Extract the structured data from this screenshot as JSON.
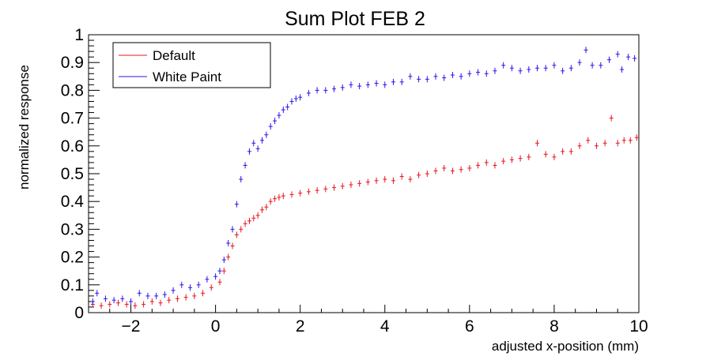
{
  "chart_data": {
    "type": "scatter",
    "title": "Sum Plot FEB 2",
    "xlabel": "adjusted x-position (mm)",
    "ylabel": "normalized response",
    "xlim": [
      -3,
      10
    ],
    "ylim": [
      0,
      1
    ],
    "x_ticks": [
      -2,
      0,
      2,
      4,
      6,
      8,
      10
    ],
    "x_tick_labels": [
      "−2",
      "0",
      "2",
      "4",
      "6",
      "8",
      "10"
    ],
    "y_ticks": [
      0,
      0.1,
      0.2,
      0.3,
      0.4,
      0.5,
      0.6,
      0.7,
      0.8,
      0.9,
      1
    ],
    "y_tick_labels": [
      "0",
      "0.1",
      "0.2",
      "0.3",
      "0.4",
      "0.5",
      "0.6",
      "0.7",
      "0.8",
      "0.9",
      "1"
    ],
    "grid": false,
    "legend_position": "top-left",
    "series": [
      {
        "name": "Default",
        "color": "#e8141c",
        "points": [
          [
            -2.9,
            0.03
          ],
          [
            -2.7,
            0.025
          ],
          [
            -2.5,
            0.03
          ],
          [
            -2.3,
            0.035
          ],
          [
            -2.1,
            0.03
          ],
          [
            -1.9,
            0.025
          ],
          [
            -1.7,
            0.03
          ],
          [
            -1.5,
            0.04
          ],
          [
            -1.3,
            0.035
          ],
          [
            -1.1,
            0.045
          ],
          [
            -0.9,
            0.05
          ],
          [
            -0.7,
            0.055
          ],
          [
            -0.5,
            0.06
          ],
          [
            -0.3,
            0.07
          ],
          [
            -0.1,
            0.09
          ],
          [
            0.1,
            0.11
          ],
          [
            0.2,
            0.15
          ],
          [
            0.3,
            0.2
          ],
          [
            0.4,
            0.24
          ],
          [
            0.5,
            0.28
          ],
          [
            0.6,
            0.3
          ],
          [
            0.7,
            0.32
          ],
          [
            0.8,
            0.33
          ],
          [
            0.9,
            0.34
          ],
          [
            1.0,
            0.35
          ],
          [
            1.1,
            0.37
          ],
          [
            1.2,
            0.38
          ],
          [
            1.3,
            0.4
          ],
          [
            1.4,
            0.41
          ],
          [
            1.5,
            0.415
          ],
          [
            1.6,
            0.42
          ],
          [
            1.8,
            0.425
          ],
          [
            2.0,
            0.43
          ],
          [
            2.2,
            0.435
          ],
          [
            2.4,
            0.44
          ],
          [
            2.6,
            0.445
          ],
          [
            2.8,
            0.45
          ],
          [
            3.0,
            0.455
          ],
          [
            3.2,
            0.46
          ],
          [
            3.4,
            0.465
          ],
          [
            3.6,
            0.47
          ],
          [
            3.8,
            0.475
          ],
          [
            4.0,
            0.48
          ],
          [
            4.2,
            0.475
          ],
          [
            4.4,
            0.49
          ],
          [
            4.6,
            0.48
          ],
          [
            4.8,
            0.495
          ],
          [
            5.0,
            0.5
          ],
          [
            5.2,
            0.51
          ],
          [
            5.4,
            0.52
          ],
          [
            5.6,
            0.51
          ],
          [
            5.8,
            0.515
          ],
          [
            6.0,
            0.52
          ],
          [
            6.2,
            0.53
          ],
          [
            6.4,
            0.54
          ],
          [
            6.6,
            0.53
          ],
          [
            6.8,
            0.545
          ],
          [
            7.0,
            0.55
          ],
          [
            7.2,
            0.555
          ],
          [
            7.4,
            0.56
          ],
          [
            7.6,
            0.61
          ],
          [
            7.8,
            0.57
          ],
          [
            8.0,
            0.56
          ],
          [
            8.2,
            0.58
          ],
          [
            8.4,
            0.58
          ],
          [
            8.6,
            0.6
          ],
          [
            8.8,
            0.62
          ],
          [
            9.0,
            0.6
          ],
          [
            9.2,
            0.61
          ],
          [
            9.35,
            0.7
          ],
          [
            9.5,
            0.61
          ],
          [
            9.65,
            0.62
          ],
          [
            9.8,
            0.62
          ],
          [
            9.95,
            0.63
          ]
        ]
      },
      {
        "name": "White Paint",
        "color": "#2a14e8",
        "points": [
          [
            -2.9,
            0.04
          ],
          [
            -2.8,
            0.07
          ],
          [
            -2.6,
            0.05
          ],
          [
            -2.4,
            0.045
          ],
          [
            -2.2,
            0.05
          ],
          [
            -2.0,
            0.04
          ],
          [
            -1.8,
            0.07
          ],
          [
            -1.6,
            0.06
          ],
          [
            -1.4,
            0.06
          ],
          [
            -1.2,
            0.065
          ],
          [
            -1.0,
            0.08
          ],
          [
            -0.8,
            0.1
          ],
          [
            -0.6,
            0.09
          ],
          [
            -0.4,
            0.1
          ],
          [
            -0.2,
            0.12
          ],
          [
            0.0,
            0.13
          ],
          [
            0.1,
            0.15
          ],
          [
            0.2,
            0.19
          ],
          [
            0.3,
            0.25
          ],
          [
            0.4,
            0.3
          ],
          [
            0.5,
            0.39
          ],
          [
            0.6,
            0.48
          ],
          [
            0.7,
            0.53
          ],
          [
            0.8,
            0.58
          ],
          [
            0.9,
            0.61
          ],
          [
            1.0,
            0.59
          ],
          [
            1.1,
            0.62
          ],
          [
            1.2,
            0.64
          ],
          [
            1.3,
            0.67
          ],
          [
            1.4,
            0.69
          ],
          [
            1.5,
            0.71
          ],
          [
            1.6,
            0.73
          ],
          [
            1.7,
            0.74
          ],
          [
            1.8,
            0.76
          ],
          [
            1.9,
            0.77
          ],
          [
            2.0,
            0.775
          ],
          [
            2.2,
            0.79
          ],
          [
            2.4,
            0.8
          ],
          [
            2.6,
            0.8
          ],
          [
            2.8,
            0.805
          ],
          [
            3.0,
            0.81
          ],
          [
            3.2,
            0.82
          ],
          [
            3.4,
            0.815
          ],
          [
            3.6,
            0.82
          ],
          [
            3.8,
            0.825
          ],
          [
            4.0,
            0.82
          ],
          [
            4.2,
            0.83
          ],
          [
            4.4,
            0.83
          ],
          [
            4.6,
            0.85
          ],
          [
            4.8,
            0.84
          ],
          [
            5.0,
            0.84
          ],
          [
            5.2,
            0.85
          ],
          [
            5.4,
            0.845
          ],
          [
            5.6,
            0.855
          ],
          [
            5.8,
            0.85
          ],
          [
            6.0,
            0.86
          ],
          [
            6.2,
            0.865
          ],
          [
            6.4,
            0.86
          ],
          [
            6.6,
            0.87
          ],
          [
            6.8,
            0.89
          ],
          [
            7.0,
            0.88
          ],
          [
            7.2,
            0.87
          ],
          [
            7.4,
            0.875
          ],
          [
            7.6,
            0.88
          ],
          [
            7.8,
            0.88
          ],
          [
            8.0,
            0.89
          ],
          [
            8.2,
            0.87
          ],
          [
            8.4,
            0.88
          ],
          [
            8.6,
            0.9
          ],
          [
            8.75,
            0.945
          ],
          [
            8.9,
            0.89
          ],
          [
            9.1,
            0.89
          ],
          [
            9.3,
            0.91
          ],
          [
            9.5,
            0.93
          ],
          [
            9.6,
            0.875
          ],
          [
            9.75,
            0.92
          ],
          [
            9.9,
            0.915
          ]
        ]
      }
    ]
  }
}
